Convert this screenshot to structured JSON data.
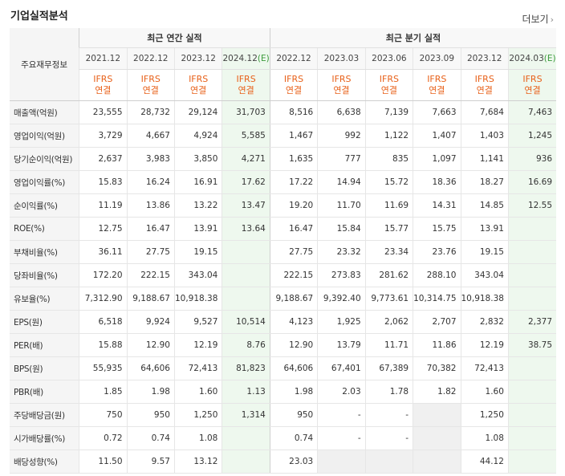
{
  "header": {
    "title": "기업실적분석",
    "more_label": "더보기",
    "more_icon": "chevron-right-icon"
  },
  "corner_label": "주요재무정보",
  "groups": {
    "annual": "최근 연간 실적",
    "quarterly": "최근 분기 실적"
  },
  "periods": [
    {
      "label": "2021.12",
      "suffix": ""
    },
    {
      "label": "2022.12",
      "suffix": ""
    },
    {
      "label": "2023.12",
      "suffix": ""
    },
    {
      "label": "2024.12",
      "suffix": "(E)"
    },
    {
      "label": "2022.12",
      "suffix": ""
    },
    {
      "label": "2023.03",
      "suffix": ""
    },
    {
      "label": "2023.06",
      "suffix": ""
    },
    {
      "label": "2023.09",
      "suffix": ""
    },
    {
      "label": "2023.12",
      "suffix": ""
    },
    {
      "label": "2024.03",
      "suffix": "(E)"
    }
  ],
  "ifrs": {
    "line1": "IFRS",
    "line2": "연결"
  },
  "rows": [
    {
      "label": "매출액(억원)",
      "values": [
        "23,555",
        "28,732",
        "29,124",
        "31,703",
        "8,516",
        "6,638",
        "7,139",
        "7,663",
        "7,684",
        "7,463"
      ]
    },
    {
      "label": "영업이익(억원)",
      "values": [
        "3,729",
        "4,667",
        "4,924",
        "5,585",
        "1,467",
        "992",
        "1,122",
        "1,407",
        "1,403",
        "1,245"
      ]
    },
    {
      "label": "당기순이익(억원)",
      "values": [
        "2,637",
        "3,983",
        "3,850",
        "4,271",
        "1,635",
        "777",
        "835",
        "1,097",
        "1,141",
        "936"
      ]
    },
    {
      "label": "영업이익률(%)",
      "values": [
        "15.83",
        "16.24",
        "16.91",
        "17.62",
        "17.22",
        "14.94",
        "15.72",
        "18.36",
        "18.27",
        "16.69"
      ]
    },
    {
      "label": "순이익률(%)",
      "values": [
        "11.19",
        "13.86",
        "13.22",
        "13.47",
        "19.20",
        "11.70",
        "11.69",
        "14.31",
        "14.85",
        "12.55"
      ]
    },
    {
      "label": "ROE(%)",
      "values": [
        "12.75",
        "16.47",
        "13.91",
        "13.64",
        "16.47",
        "15.84",
        "15.77",
        "15.75",
        "13.91",
        ""
      ]
    },
    {
      "label": "부채비율(%)",
      "values": [
        "36.11",
        "27.75",
        "19.15",
        "",
        "27.75",
        "23.32",
        "23.34",
        "23.76",
        "19.15",
        ""
      ]
    },
    {
      "label": "당좌비율(%)",
      "values": [
        "172.20",
        "222.15",
        "343.04",
        "",
        "222.15",
        "273.83",
        "281.62",
        "288.10",
        "343.04",
        ""
      ]
    },
    {
      "label": "유보율(%)",
      "values": [
        "7,312.90",
        "9,188.67",
        "10,918.38",
        "",
        "9,188.67",
        "9,392.40",
        "9,773.61",
        "10,314.75",
        "10,918.38",
        ""
      ]
    },
    {
      "label": "EPS(원)",
      "values": [
        "6,518",
        "9,924",
        "9,527",
        "10,514",
        "4,123",
        "1,925",
        "2,062",
        "2,707",
        "2,832",
        "2,377"
      ]
    },
    {
      "label": "PER(배)",
      "values": [
        "15.88",
        "12.90",
        "12.19",
        "8.76",
        "12.90",
        "13.79",
        "11.71",
        "11.86",
        "12.19",
        "38.75"
      ]
    },
    {
      "label": "BPS(원)",
      "values": [
        "55,935",
        "64,606",
        "72,413",
        "81,823",
        "64,606",
        "67,401",
        "67,389",
        "70,382",
        "72,413",
        ""
      ]
    },
    {
      "label": "PBR(배)",
      "values": [
        "1.85",
        "1.98",
        "1.60",
        "1.13",
        "1.98",
        "2.03",
        "1.78",
        "1.82",
        "1.60",
        ""
      ]
    },
    {
      "label": "주당배당금(원)",
      "values": [
        "750",
        "950",
        "1,250",
        "1,314",
        "950",
        "-",
        "-",
        "",
        "1,250",
        ""
      ]
    },
    {
      "label": "시가배당률(%)",
      "values": [
        "0.72",
        "0.74",
        "1.08",
        "",
        "0.74",
        "-",
        "-",
        "",
        "1.08",
        ""
      ]
    },
    {
      "label": "배당성향(%)",
      "values": [
        "11.50",
        "9.57",
        "13.12",
        "",
        "23.03",
        "",
        "",
        "",
        "44.12",
        ""
      ]
    }
  ]
}
